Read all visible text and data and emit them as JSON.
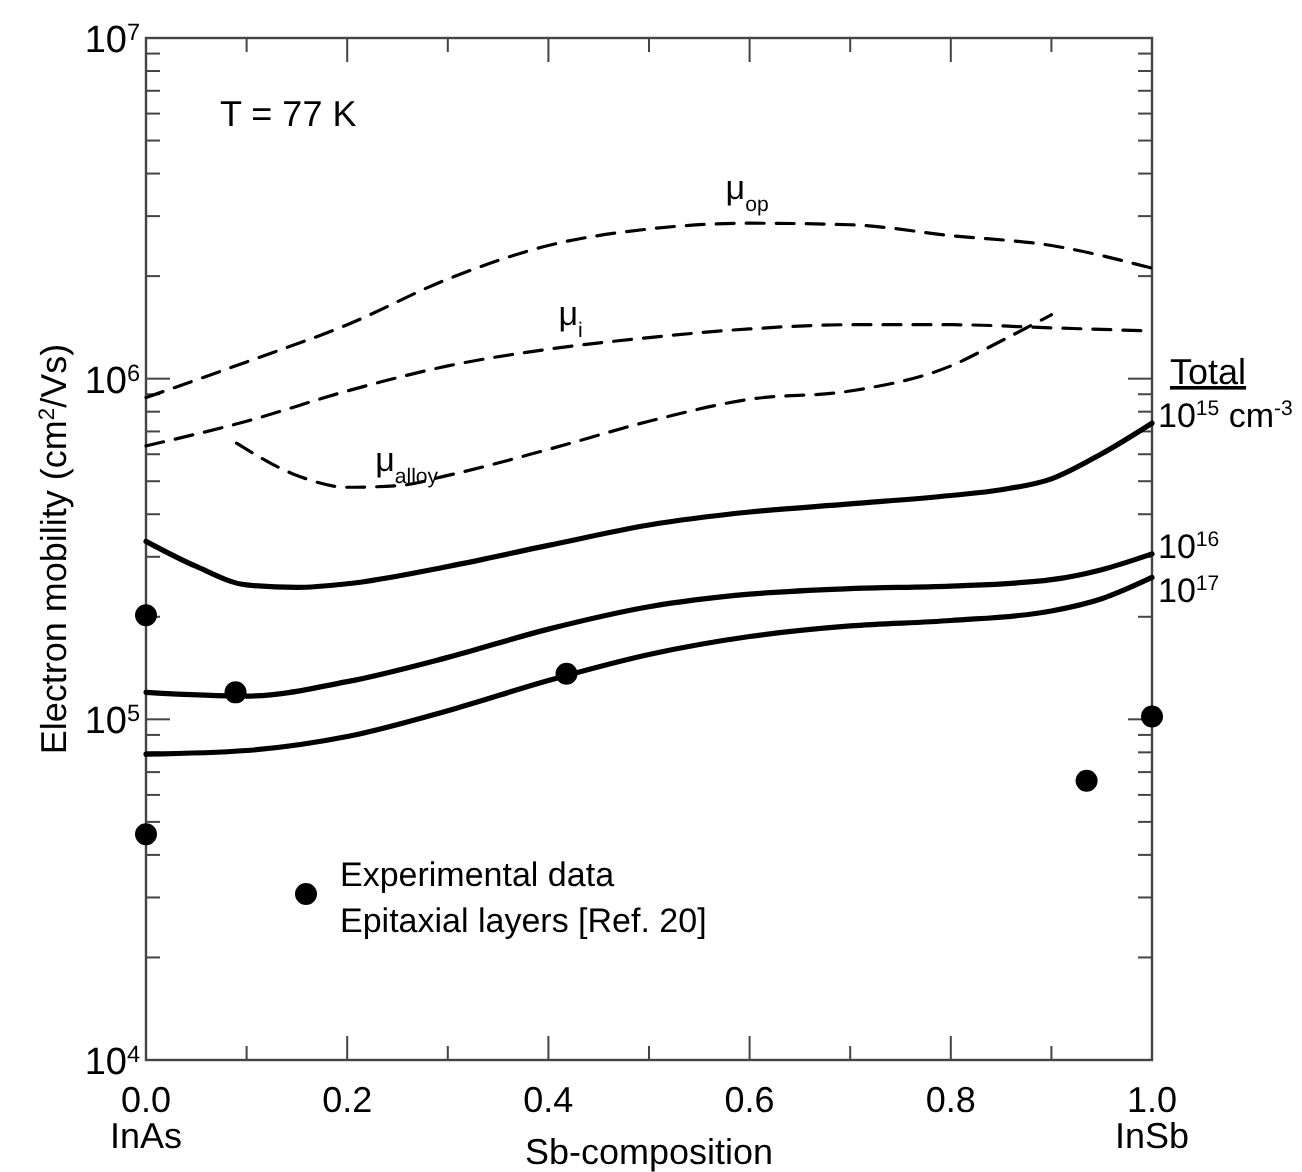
{
  "chart_data": {
    "type": "line",
    "xlabel": "Sb-composition",
    "ylabel": "Electron mobility (cm$^{2}$/Vs)",
    "log": "y",
    "xlim": [
      0,
      1
    ],
    "ylim": [
      10000,
      10000000
    ],
    "xticks": [
      {
        "value": 0,
        "label": "0.0\nInAs"
      },
      {
        "value": 0.1,
        "label": null
      },
      0.2,
      {
        "value": 0.3,
        "label": null
      },
      0.4,
      {
        "value": 0.5,
        "label": null
      },
      0.6,
      {
        "value": 0.7,
        "label": null
      },
      0.8,
      {
        "value": 0.9,
        "label": null
      },
      {
        "value": 1,
        "label": "1.0\nInSb"
      }
    ],
    "yticks": [
      {
        "value": 10000,
        "label": "10$^{4}$"
      },
      {
        "value": 20000,
        "label": null
      },
      {
        "value": 30000,
        "label": null
      },
      {
        "value": 40000,
        "label": null
      },
      {
        "value": 50000,
        "label": null
      },
      {
        "value": 60000,
        "label": null
      },
      {
        "value": 70000,
        "label": null
      },
      {
        "value": 80000,
        "label": null
      },
      {
        "value": 90000,
        "label": null
      },
      {
        "value": 100000,
        "label": "10$^{5}$"
      },
      {
        "value": 200000,
        "label": null
      },
      {
        "value": 300000,
        "label": null
      },
      {
        "value": 400000,
        "label": null
      },
      {
        "value": 500000,
        "label": null
      },
      {
        "value": 600000,
        "label": null
      },
      {
        "value": 700000,
        "label": null
      },
      {
        "value": 800000,
        "label": null
      },
      {
        "value": 900000,
        "label": null
      },
      {
        "value": 1000000,
        "label": "10$^{6}$"
      },
      {
        "value": 2000000,
        "label": null
      },
      {
        "value": 3000000,
        "label": null
      },
      {
        "value": 4000000,
        "label": null
      },
      {
        "value": 5000000,
        "label": null
      },
      {
        "value": 6000000,
        "label": null
      },
      {
        "value": 7000000,
        "label": null
      },
      {
        "value": 8000000,
        "label": null
      },
      {
        "value": 9000000,
        "label": null
      },
      {
        "value": 10000000,
        "label": "10$^{7}$"
      }
    ],
    "grid": false,
    "legend": "left",
    "marker": "none",
    "annotations": [
      "T = 77 K",
      "Total"
    ],
    "series": [
      {
        "name": "μ$_{op}$",
        "color": "#000000",
        "line_style": "dashed",
        "x": [
          0,
          0.1,
          0.2,
          0.3,
          0.4,
          0.5,
          0.6,
          0.7,
          0.8,
          0.9,
          1
        ],
        "values": [
          880000,
          1120000,
          1440000,
          1960000,
          2460000,
          2750000,
          2860000,
          2830000,
          2630000,
          2460000,
          2110000
        ]
      },
      {
        "name": "μ$_{i}$",
        "color": "#000000",
        "line_style": "dashed",
        "x": [
          0,
          0.1,
          0.2,
          0.3,
          0.4,
          0.5,
          0.6,
          0.7,
          0.8,
          0.9,
          1
        ],
        "values": [
          635000,
          750000,
          920000,
          1090000,
          1220000,
          1320000,
          1400000,
          1440000,
          1440000,
          1410000,
          1380000
        ]
      },
      {
        "name": "μ$_{alloy}$",
        "color": "#000000",
        "line_style": "dashed",
        "x": [
          0.09,
          0.15,
          0.2,
          0.25,
          0.3,
          0.4,
          0.5,
          0.6,
          0.7,
          0.8,
          0.85,
          0.9
        ],
        "values": [
          647000,
          520000,
          480000,
          485000,
          520000,
          620000,
          750000,
          870000,
          920000,
          1090000,
          1290000,
          1540000
        ]
      },
      {
        "name": "10$^{15}$ cm$^{-3}$",
        "color": "#000000",
        "line_style": "solid",
        "x": [
          0,
          0.05,
          0.1,
          0.15,
          0.2,
          0.3,
          0.4,
          0.5,
          0.6,
          0.7,
          0.8,
          0.85,
          0.9,
          0.95,
          1
        ],
        "values": [
          333000,
          281000,
          248000,
          244000,
          250000,
          281000,
          324000,
          372000,
          406000,
          429000,
          454000,
          472000,
          508000,
          602000,
          740000
        ]
      },
      {
        "name": "10$^{16}$",
        "color": "#000000",
        "line_style": "solid",
        "x": [
          0,
          0.1,
          0.2,
          0.3,
          0.4,
          0.5,
          0.6,
          0.7,
          0.8,
          0.9,
          0.95,
          1
        ],
        "values": [
          120000,
          117000,
          129000,
          152000,
          184000,
          214000,
          233000,
          242000,
          246000,
          257000,
          275000,
          306000
        ]
      },
      {
        "name": "10$^{17}$",
        "color": "#000000",
        "line_style": "solid",
        "x": [
          0,
          0.1,
          0.2,
          0.3,
          0.4,
          0.5,
          0.6,
          0.7,
          0.8,
          0.9,
          0.95,
          1
        ],
        "values": [
          79000,
          81000,
          89000,
          106000,
          130000,
          155000,
          175000,
          188000,
          195000,
          208000,
          226000,
          261000
        ]
      },
      {
        "name": "Experimental data\nEpitaxial layers [Ref. 20]",
        "type": "scatter",
        "marker": "circle",
        "color": "#000000",
        "x": [
          0,
          0,
          0.089,
          0.418,
          0.935,
          1
        ],
        "values": [
          202000,
          46000,
          120000,
          136000,
          66000,
          102000
        ]
      }
    ]
  }
}
